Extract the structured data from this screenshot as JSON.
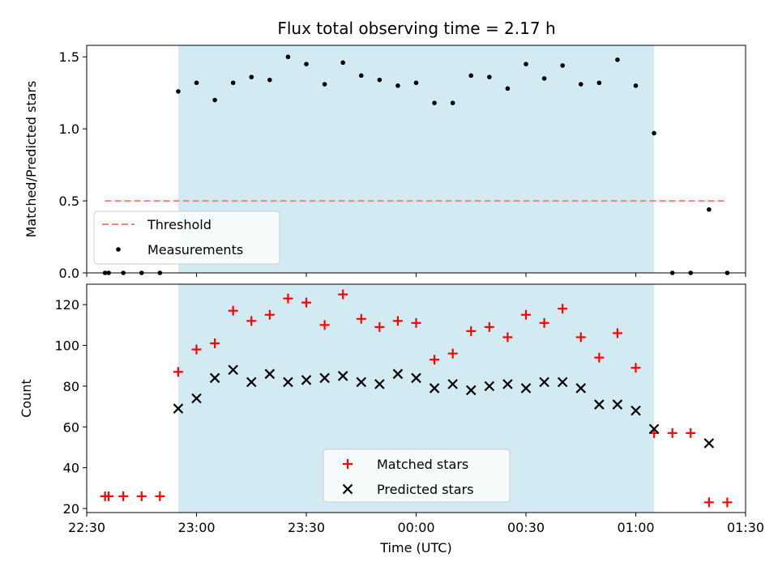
{
  "title": "Flux total observing time = 2.17 h",
  "colors": {
    "shade": "#add8e6",
    "threshold": "#ff7f7f",
    "measurements": "#000000",
    "matched": "#ff0000",
    "predicted": "#000000"
  },
  "chart_data": [
    {
      "type": "scatter",
      "ylabel": "Matched/Predicted stars",
      "xlim": [
        "22:30",
        "01:30"
      ],
      "ylim": [
        0,
        1.58
      ],
      "yticks": [
        "0.0",
        "0.5",
        "1.0",
        "1.5"
      ],
      "ytick_values": [
        0,
        0.5,
        1.0,
        1.5
      ],
      "shaded_region": [
        "22:55",
        "01:05"
      ],
      "threshold": {
        "name": "Threshold",
        "y": 0.5,
        "x_range": [
          "22:35",
          "01:25"
        ]
      },
      "legend": [
        "Threshold",
        "Measurements"
      ],
      "legend_position": "lower-left",
      "series": [
        {
          "name": "Measurements",
          "x": [
            "22:35",
            "22:36",
            "22:40",
            "22:45",
            "22:50",
            "22:55",
            "23:00",
            "23:05",
            "23:10",
            "23:15",
            "23:20",
            "23:25",
            "23:30",
            "23:35",
            "23:40",
            "23:45",
            "23:50",
            "23:55",
            "00:00",
            "00:05",
            "00:10",
            "00:15",
            "00:20",
            "00:25",
            "00:30",
            "00:35",
            "00:40",
            "00:45",
            "00:50",
            "00:55",
            "01:00",
            "01:05",
            "01:10",
            "01:15",
            "01:20",
            "01:25"
          ],
          "y": [
            0,
            0,
            0,
            0,
            0,
            1.26,
            1.32,
            1.2,
            1.32,
            1.36,
            1.34,
            1.5,
            1.45,
            1.31,
            1.46,
            1.37,
            1.34,
            1.3,
            1.32,
            1.18,
            1.18,
            1.37,
            1.36,
            1.28,
            1.45,
            1.35,
            1.44,
            1.31,
            1.32,
            1.48,
            1.3,
            0.97,
            0,
            0,
            0.44,
            0
          ]
        }
      ]
    },
    {
      "type": "scatter",
      "xlabel": "Time (UTC)",
      "ylabel": "Count",
      "xlim": [
        "22:30",
        "01:30"
      ],
      "xticks": [
        "22:30",
        "23:00",
        "23:30",
        "00:00",
        "00:30",
        "01:00",
        "01:30"
      ],
      "ylim": [
        18,
        130
      ],
      "yticks": [
        "20",
        "40",
        "60",
        "80",
        "100",
        "120"
      ],
      "ytick_values": [
        20,
        40,
        60,
        80,
        100,
        120
      ],
      "shaded_region": [
        "22:55",
        "01:05"
      ],
      "legend": [
        "Matched stars",
        "Predicted stars"
      ],
      "legend_position": "lower-center",
      "series": [
        {
          "name": "Matched stars",
          "marker": "+",
          "x": [
            "22:35",
            "22:36",
            "22:40",
            "22:45",
            "22:50",
            "22:55",
            "23:00",
            "23:05",
            "23:10",
            "23:15",
            "23:20",
            "23:25",
            "23:30",
            "23:35",
            "23:40",
            "23:45",
            "23:50",
            "23:55",
            "00:00",
            "00:05",
            "00:10",
            "00:15",
            "00:20",
            "00:25",
            "00:30",
            "00:35",
            "00:40",
            "00:45",
            "00:50",
            "00:55",
            "01:00",
            "01:05",
            "01:10",
            "01:15",
            "01:20",
            "01:25"
          ],
          "y": [
            26,
            26,
            26,
            26,
            26,
            87,
            98,
            101,
            117,
            112,
            115,
            123,
            121,
            110,
            125,
            113,
            109,
            112,
            111,
            93,
            96,
            107,
            109,
            104,
            115,
            111,
            118,
            104,
            94,
            106,
            89,
            57,
            57,
            57,
            23,
            23
          ]
        },
        {
          "name": "Predicted stars",
          "marker": "x",
          "x": [
            "22:55",
            "23:00",
            "23:05",
            "23:10",
            "23:15",
            "23:20",
            "23:25",
            "23:30",
            "23:35",
            "23:40",
            "23:45",
            "23:50",
            "23:55",
            "00:00",
            "00:05",
            "00:10",
            "00:15",
            "00:20",
            "00:25",
            "00:30",
            "00:35",
            "00:40",
            "00:45",
            "00:50",
            "00:55",
            "01:00",
            "01:05",
            "01:20"
          ],
          "y": [
            69,
            74,
            84,
            88,
            82,
            86,
            82,
            83,
            84,
            85,
            82,
            81,
            86,
            84,
            79,
            81,
            78,
            80,
            81,
            79,
            82,
            82,
            79,
            71,
            71,
            68,
            59,
            52
          ]
        }
      ]
    }
  ]
}
